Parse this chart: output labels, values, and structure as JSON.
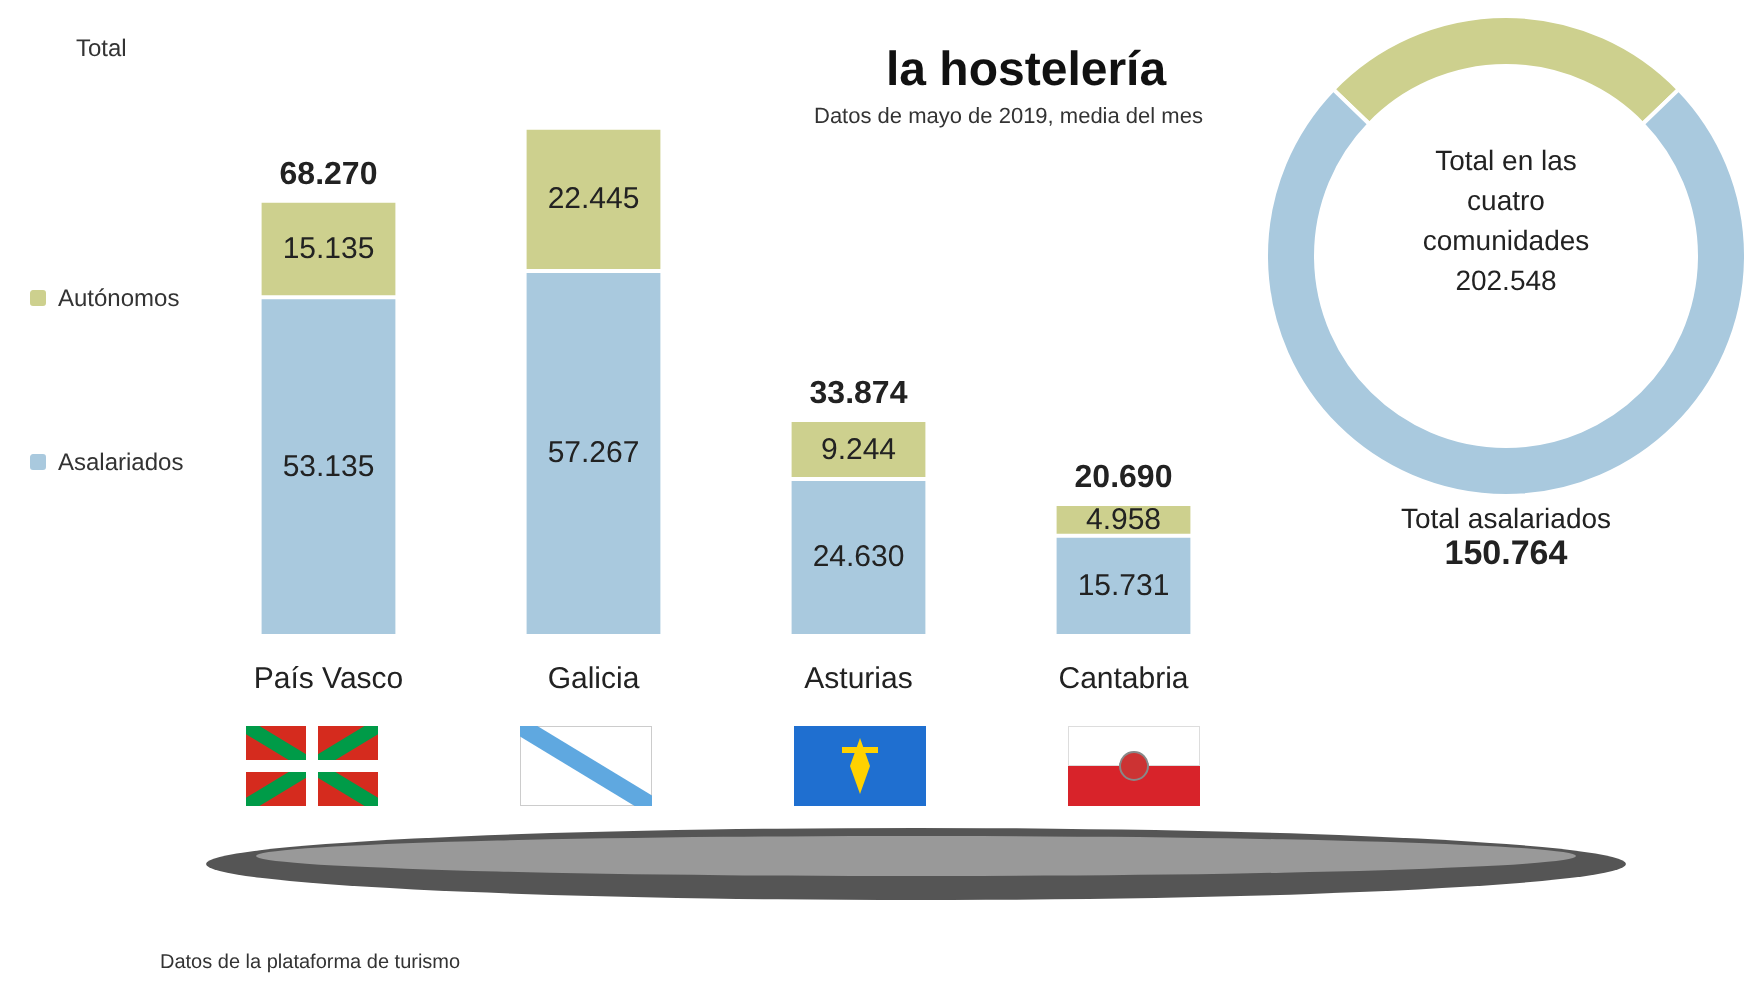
{
  "chart_data": [
    {
      "type": "bar",
      "title": "la hostelería",
      "subtitle": "Datos de mayo de 2019, media del mes",
      "categories": [
        "País Vasco",
        "Galicia",
        "Asturias",
        "Cantabria"
      ],
      "stacked": true,
      "legend": "left",
      "series": [
        {
          "name": "Asalariados",
          "color": "#a9c9de",
          "values": [
            53135,
            57267,
            24630,
            15731
          ],
          "value_labels": [
            "53.135",
            "57.267",
            "24.630",
            "15.731"
          ]
        },
        {
          "name": "Autónomos",
          "color": "#cdd08e",
          "values": [
            15135,
            22445,
            9244,
            4958
          ],
          "value_labels": [
            "15.135",
            "22.445",
            "9.244",
            "4.958"
          ]
        }
      ],
      "totals": [
        "68.270",
        null,
        "33.874",
        "20.690"
      ],
      "annotations": [
        "Total",
        "Datos de la plataforma de turismo"
      ]
    },
    {
      "type": "donut",
      "categories": [
        null,
        "Total asalariados"
      ],
      "values": [
        51784,
        150764
      ],
      "colors": [
        "#cdd08e",
        "#a9c9de"
      ],
      "value_labels": [
        null,
        "150.764"
      ],
      "annotations": [
        "Total en las cuatro comunidades 202.548"
      ]
    }
  ]
}
